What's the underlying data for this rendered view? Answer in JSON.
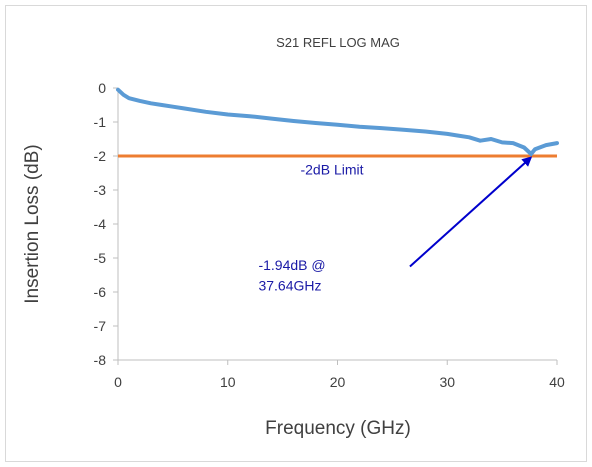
{
  "chart_data": {
    "type": "line",
    "title": "S21 REFL  LOG MAG",
    "xlabel": "Frequency (GHz)",
    "ylabel": "Insertion Loss (dB)",
    "xlim": [
      0,
      40
    ],
    "ylim": [
      -8,
      0
    ],
    "x_ticks": [
      "0",
      "10",
      "20",
      "30",
      "40"
    ],
    "y_ticks": [
      "0",
      "-1",
      "-2",
      "-3",
      "-4",
      "-5",
      "-6",
      "-7",
      "-8"
    ],
    "grid": false,
    "series": [
      {
        "color": "#5b9bd5",
        "x": [
          0,
          0.5,
          1,
          2,
          3,
          4,
          5,
          6,
          8,
          10,
          12,
          14,
          16,
          18,
          20,
          22,
          24,
          26,
          28,
          30,
          31,
          32,
          33,
          34,
          35,
          36,
          37,
          37.64,
          38,
          39,
          40
        ],
        "y": [
          -0.05,
          -0.2,
          -0.3,
          -0.38,
          -0.45,
          -0.5,
          -0.55,
          -0.6,
          -0.7,
          -0.78,
          -0.83,
          -0.9,
          -0.97,
          -1.03,
          -1.08,
          -1.14,
          -1.18,
          -1.23,
          -1.28,
          -1.35,
          -1.4,
          -1.45,
          -1.55,
          -1.5,
          -1.6,
          -1.62,
          -1.75,
          -1.94,
          -1.8,
          -1.68,
          -1.62
        ]
      },
      {
        "color": "#ed7d31",
        "x": [
          0,
          40
        ],
        "y": [
          -2,
          -2
        ]
      }
    ],
    "annotations": [
      {
        "text": "-2dB Limit",
        "x": 19.5,
        "y": -2.55
      },
      {
        "text": "-1.94dB @",
        "x": 12.8,
        "y": -5.35
      },
      {
        "text": "37.64GHz",
        "x": 12.8,
        "y": -5.95
      }
    ],
    "arrow": {
      "from": [
        26.6,
        -5.25
      ],
      "to": [
        37.6,
        -2.05
      ],
      "color": "#0000cc"
    }
  }
}
